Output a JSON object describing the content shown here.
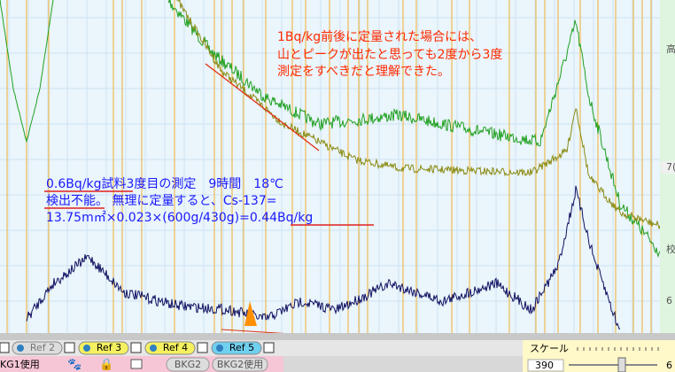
{
  "annotations": {
    "red": [
      "1Bq/kg前後に定量された場合には、",
      "山とピークが出たと思っても2度から3度",
      "測定をすべきだと理解できた。"
    ],
    "blue": [
      "0.6Bq/kg試料3度目の測定　9時間　18℃",
      "検出不能。 無理に定量すると、Cs-137=",
      "13.75m㎡×0.023×(600g/430g)=0.44Bq/kg"
    ]
  },
  "side_labels": [
    "高",
    "7(",
    "校",
    "6"
  ],
  "toolbar": {
    "refs": [
      "Ref 2",
      "Ref 3",
      "Ref 4",
      "Ref 5"
    ],
    "buttons": [
      "KG1使用",
      "BKG2",
      "BKG2使用"
    ],
    "scale_label": "スケール",
    "scale_value": "390"
  }
}
